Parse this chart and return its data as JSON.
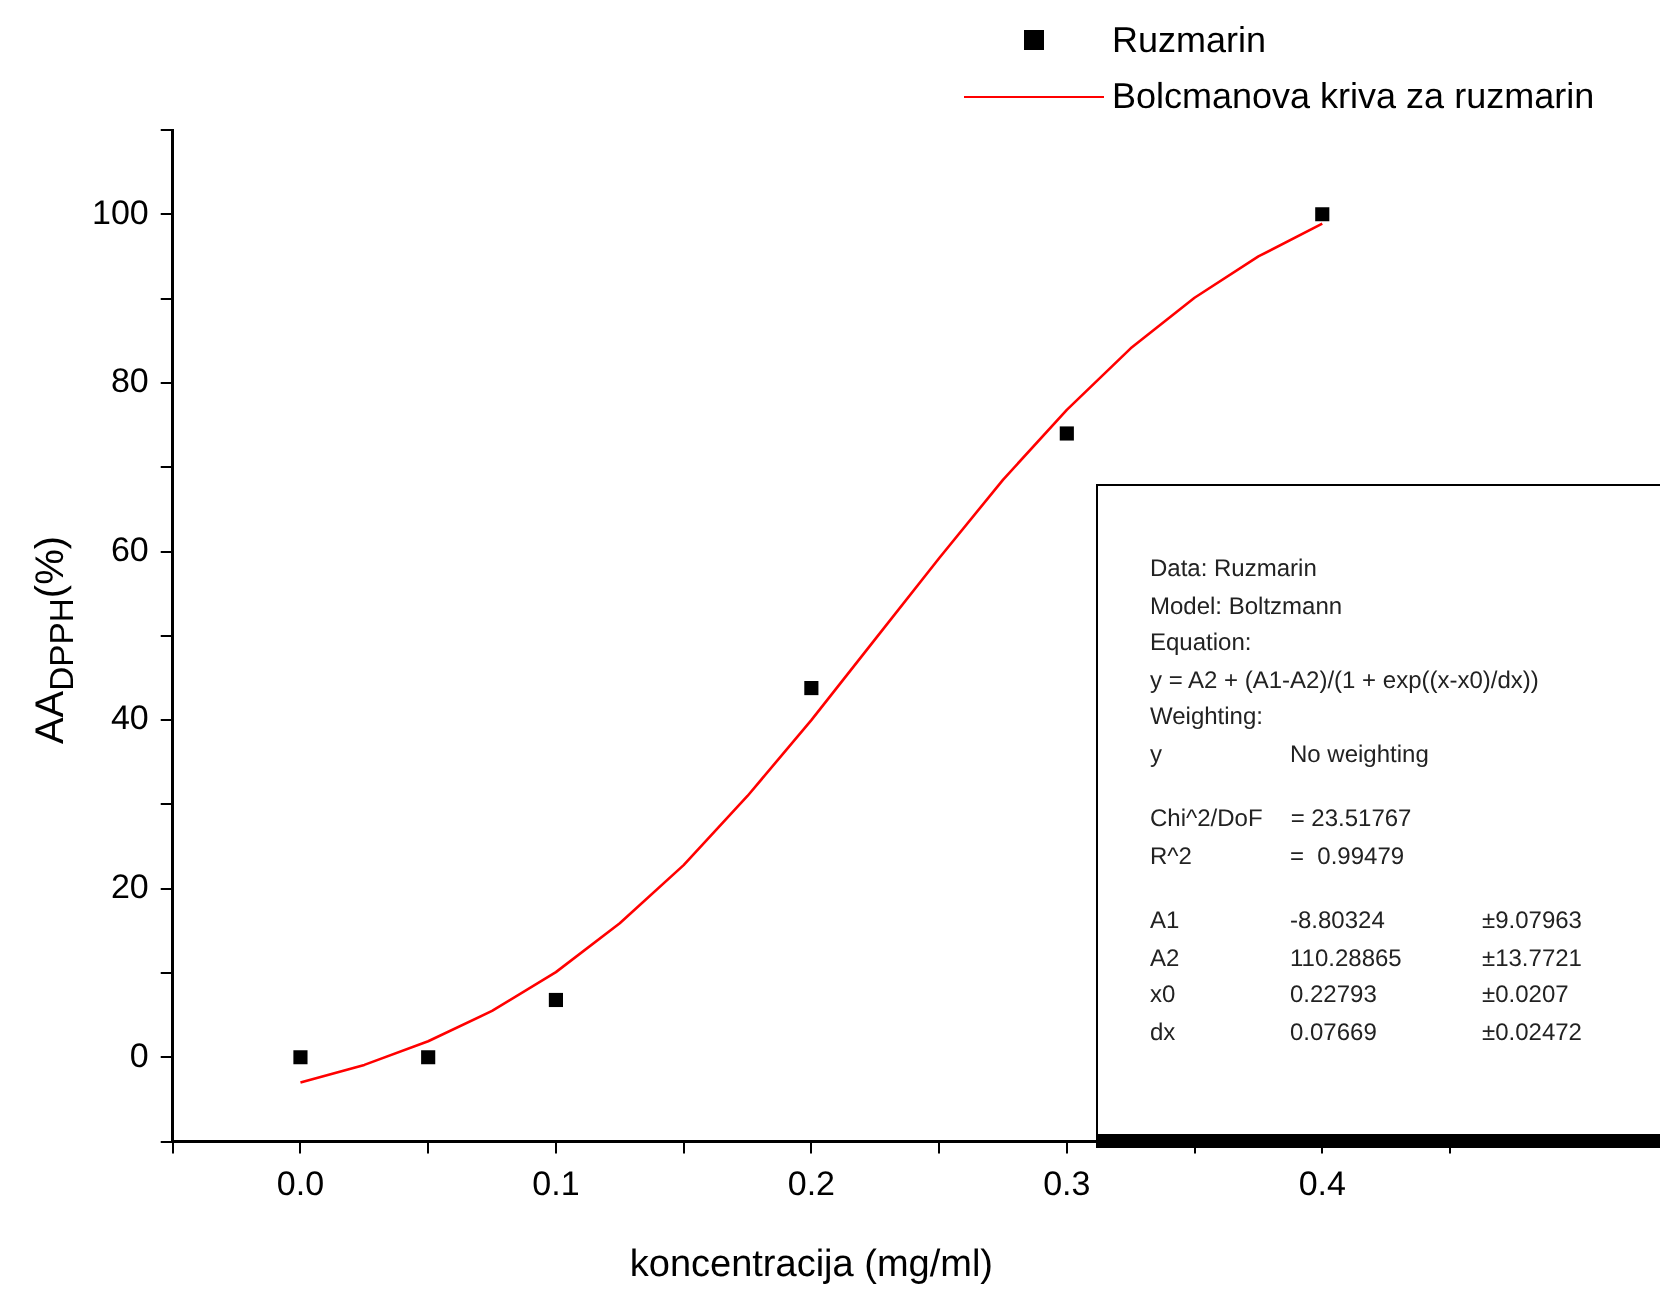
{
  "chart_data": {
    "type": "scatter",
    "xlabel": "koncentracija (mg/ml)",
    "ylabel": "AA$_{DPPH}$(%)",
    "xlim": [
      -0.05,
      0.45
    ],
    "xticks": [
      {
        "value": -0.05,
        "label": null
      },
      {
        "value": 0,
        "label": "0.0"
      },
      {
        "value": 0.05,
        "label": null
      },
      0.1,
      {
        "value": 0.15,
        "label": null
      },
      0.2,
      {
        "value": 0.25,
        "label": null
      },
      0.3,
      {
        "value": 0.35,
        "label": null
      },
      0.4,
      {
        "value": 0.45,
        "label": null
      }
    ],
    "ylim": [
      -10,
      110
    ],
    "yticks": [
      {
        "value": -10,
        "label": null
      },
      0,
      {
        "value": 10,
        "label": null
      },
      20,
      {
        "value": 30,
        "label": null
      },
      40,
      {
        "value": 50,
        "label": null
      },
      60,
      {
        "value": 70,
        "label": null
      },
      80,
      {
        "value": 90,
        "label": null
      },
      100,
      {
        "value": 110,
        "label": null
      }
    ],
    "grid": false,
    "legend": "top right",
    "series": [
      {
        "name": "Ruzmarin",
        "type": "scatter",
        "marker": "square",
        "color": "#000000",
        "x": [
          0,
          0.05,
          0.1,
          0.2,
          0.3,
          0.4
        ],
        "values": [
          0,
          0,
          6.8,
          43.8,
          74,
          100
        ]
      },
      {
        "name": "Bolcmanova kriva za ruzmarin",
        "type": "line",
        "marker": "none",
        "line_style": "solid",
        "color": "#ff0000",
        "x": [
          0,
          0.025,
          0.05,
          0.075,
          0.1,
          0.125,
          0.15,
          0.175,
          0.2,
          0.225,
          0.25,
          0.275,
          0.3,
          0.325,
          0.35,
          0.375,
          0.4
        ],
        "values": [
          -3.0,
          -0.9,
          1.9,
          5.5,
          10.1,
          15.9,
          22.8,
          31.0,
          40.0,
          49.6,
          59.2,
          68.5,
          76.8,
          84.1,
          90.1,
          95.0,
          98.9
        ]
      }
    ],
    "annotations": [
      "Data: Ruzmarin\nModel: Boltzmann\nEquation:\ny = A2 + (A1-A2)/(1 + exp((x-x0)/dx))\nWeighting:\ny\tNo weighting",
      "Chi^2/DoF\t= 23.51767\nR^2\t=  0.99479",
      "A1\t-8.80324\t±9.07963\nA2\t110.28865\t±13.7721\nx0\t0.22793\t±0.0207\ndx\t0.07669\t±0.02472"
    ]
  }
}
